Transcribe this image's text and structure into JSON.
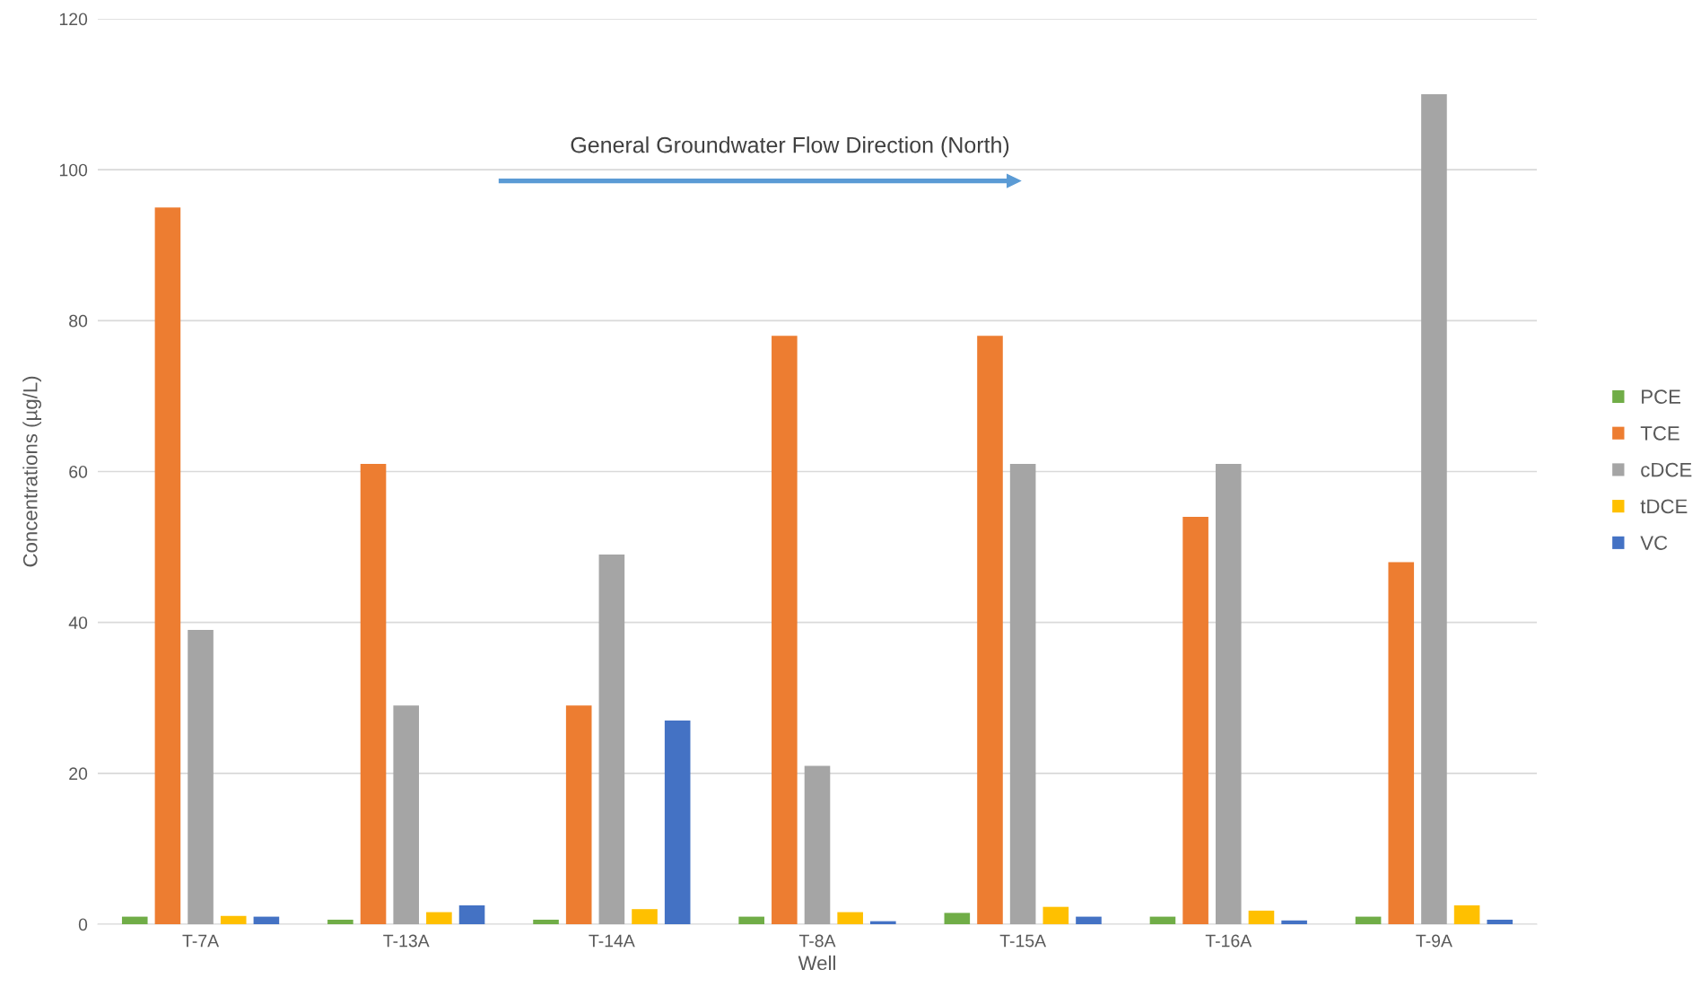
{
  "chart_data": {
    "type": "bar",
    "xlabel": "Well",
    "ylabel": "Concentrations (µg/L)",
    "categories": [
      "T-7A",
      "T-13A",
      "T-14A",
      "T-8A",
      "T-15A",
      "T-16A",
      "T-9A"
    ],
    "series": [
      {
        "name": "PCE",
        "color": "#70ad47",
        "values": [
          1.0,
          0.6,
          0.6,
          1.0,
          1.5,
          1.0,
          1.0
        ]
      },
      {
        "name": "TCE",
        "color": "#ed7d31",
        "values": [
          95,
          61,
          29,
          78,
          78,
          54,
          48
        ]
      },
      {
        "name": "cDCE",
        "color": "#a5a5a5",
        "values": [
          39,
          29,
          49,
          21,
          61,
          61,
          110
        ]
      },
      {
        "name": "tDCE",
        "color": "#ffc000",
        "values": [
          1.1,
          1.6,
          2.0,
          1.6,
          2.3,
          1.8,
          2.5
        ]
      },
      {
        "name": "VC",
        "color": "#4472c4",
        "values": [
          1.0,
          2.5,
          27,
          0.4,
          1.0,
          0.5,
          0.6
        ]
      }
    ],
    "ylim": [
      0,
      120
    ],
    "yticks": [
      0,
      20,
      40,
      60,
      80,
      100,
      120
    ],
    "grid": "y",
    "legend": "right",
    "annotations": [
      "General Groundwater Flow Direction (North)"
    ]
  }
}
